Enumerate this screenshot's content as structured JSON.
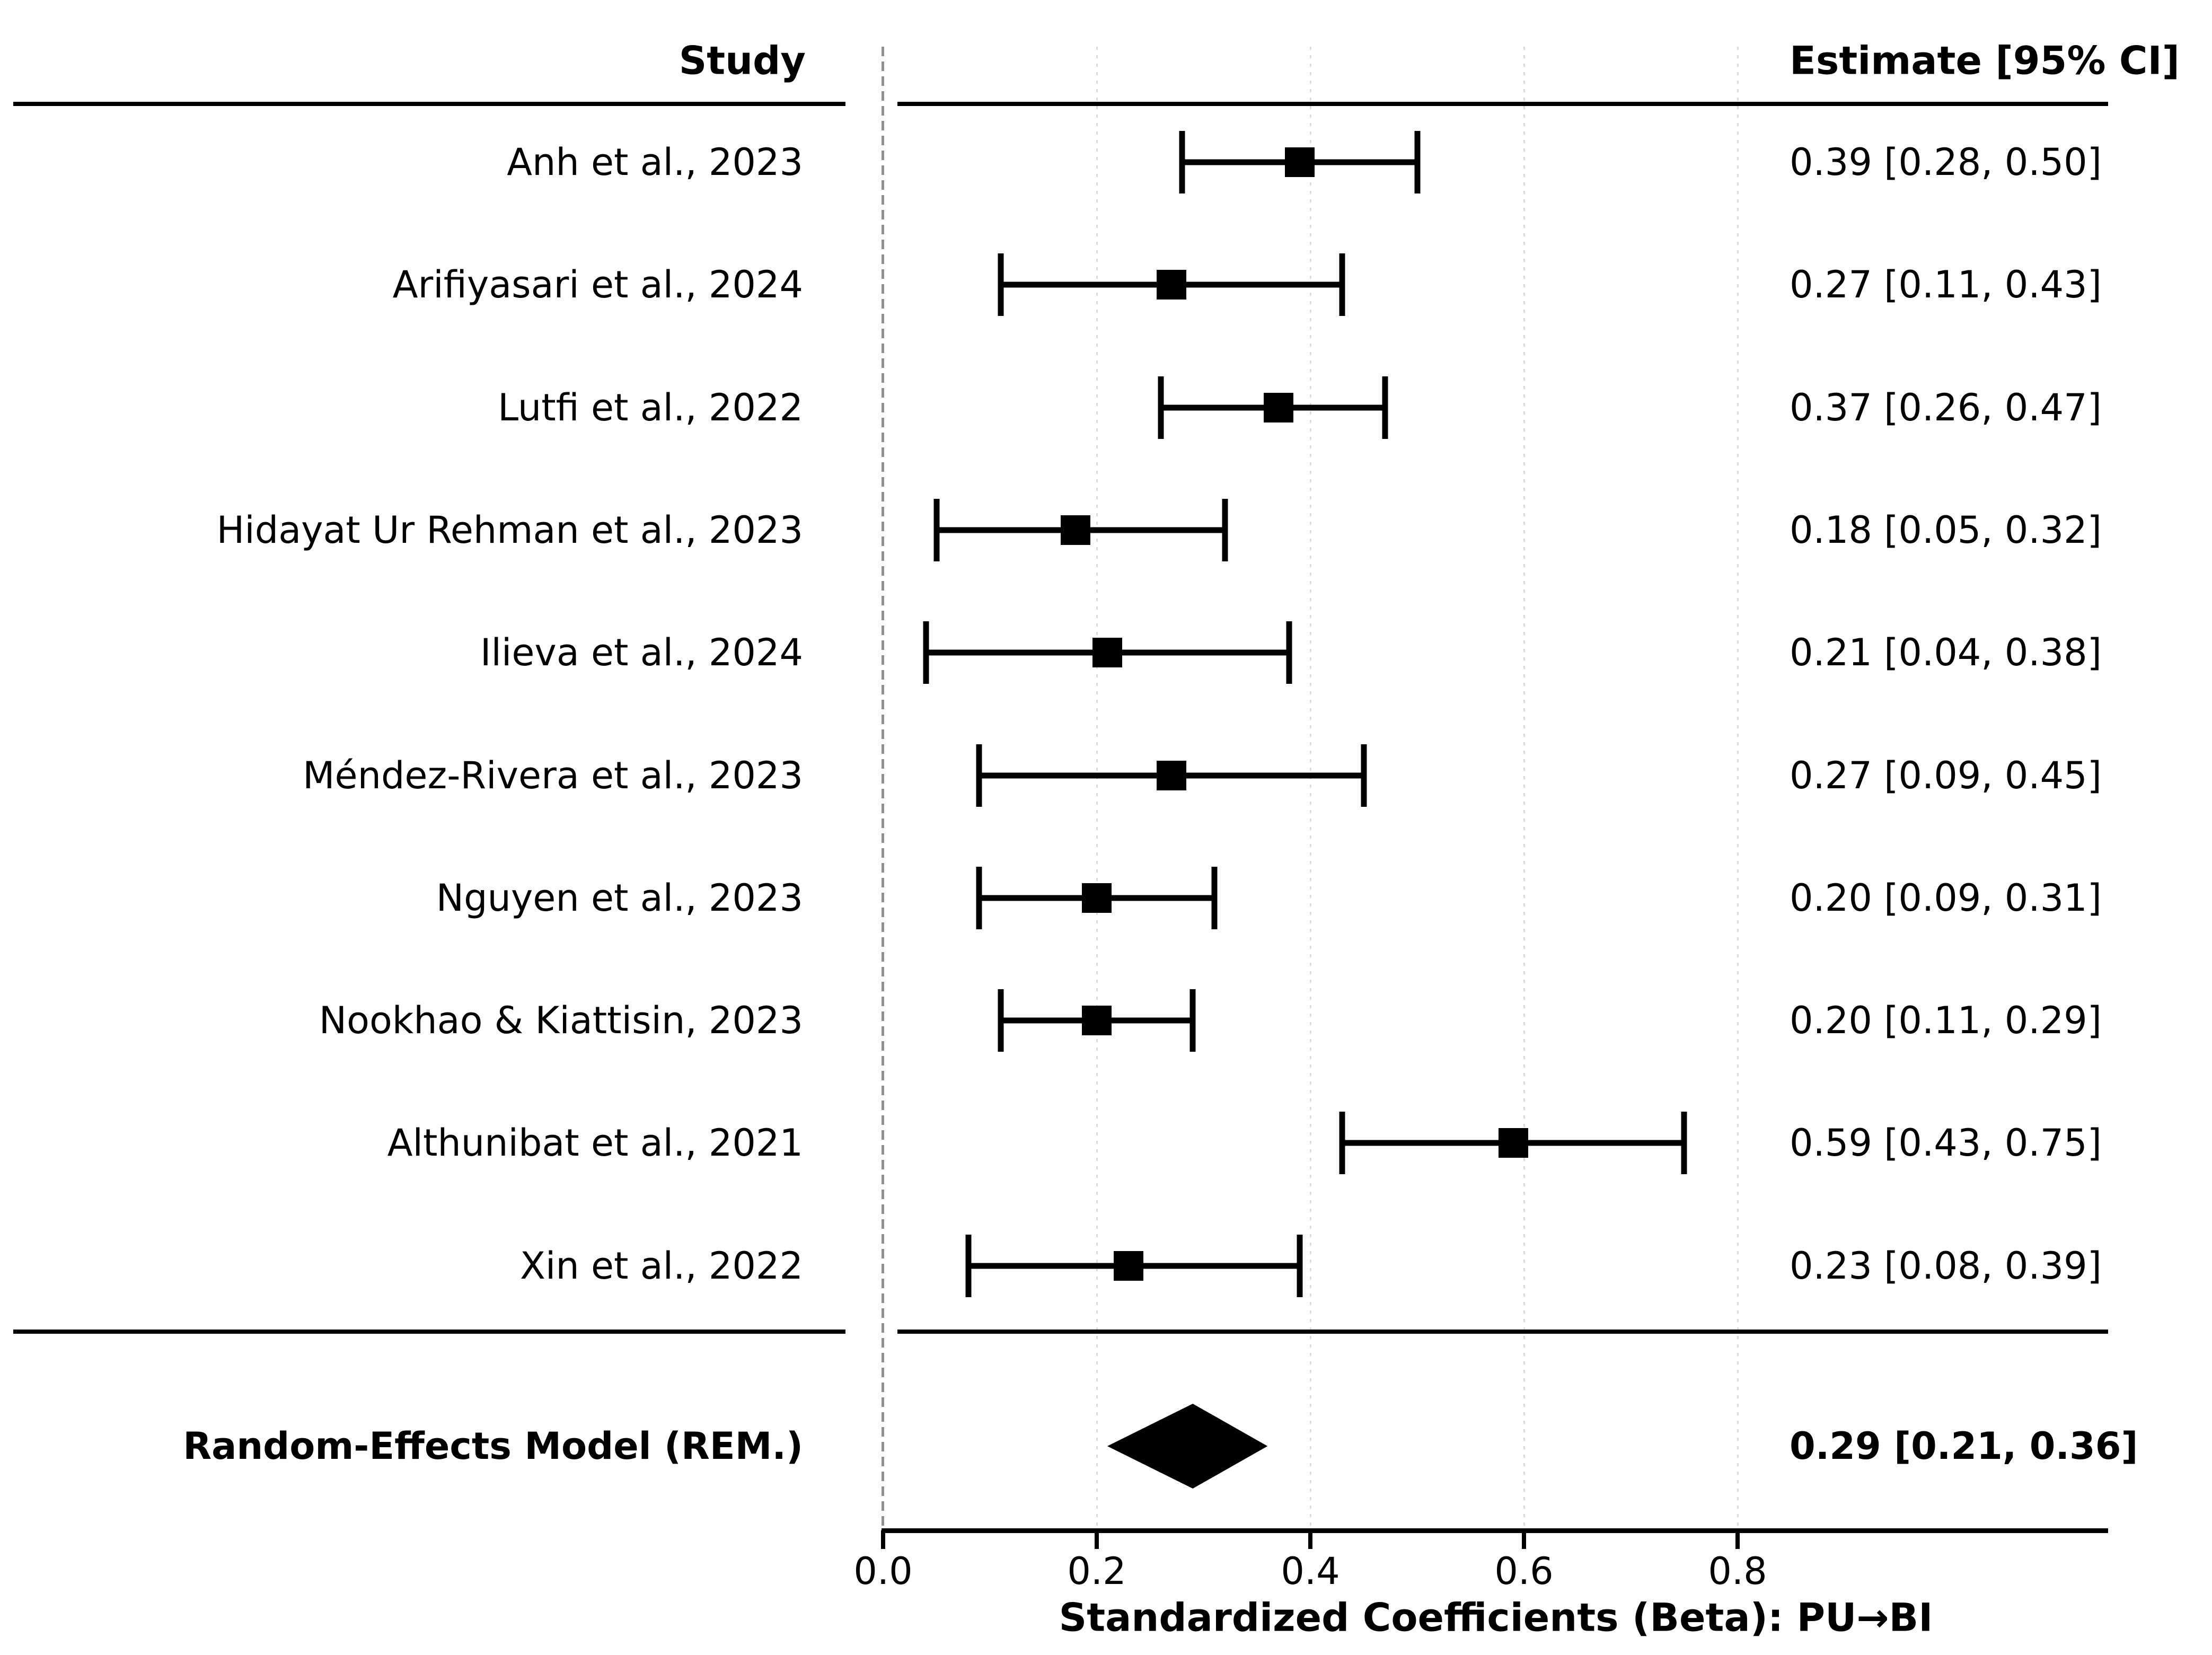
{
  "chart_data": {
    "type": "forest",
    "columns": {
      "study": "Study",
      "estimate": "Estimate [95% CI]"
    },
    "studies": [
      {
        "label": "Anh et al., 2023",
        "estimate": 0.39,
        "ci_low": 0.28,
        "ci_high": 0.5,
        "estimate_label": "0.39 [0.28, 0.50]"
      },
      {
        "label": "Arifiyasari et al., 2024",
        "estimate": 0.27,
        "ci_low": 0.11,
        "ci_high": 0.43,
        "estimate_label": "0.27 [0.11, 0.43]"
      },
      {
        "label": "Lutfi et al., 2022",
        "estimate": 0.37,
        "ci_low": 0.26,
        "ci_high": 0.47,
        "estimate_label": "0.37 [0.26, 0.47]"
      },
      {
        "label": "Hidayat Ur Rehman et al., 2023",
        "estimate": 0.18,
        "ci_low": 0.05,
        "ci_high": 0.32,
        "estimate_label": "0.18 [0.05, 0.32]"
      },
      {
        "label": "Ilieva et al., 2024",
        "estimate": 0.21,
        "ci_low": 0.04,
        "ci_high": 0.38,
        "estimate_label": "0.21 [0.04, 0.38]"
      },
      {
        "label": "Méndez-Rivera et al., 2023",
        "estimate": 0.27,
        "ci_low": 0.09,
        "ci_high": 0.45,
        "estimate_label": "0.27 [0.09, 0.45]"
      },
      {
        "label": "Nguyen et al., 2023",
        "estimate": 0.2,
        "ci_low": 0.09,
        "ci_high": 0.31,
        "estimate_label": "0.20 [0.09, 0.31]"
      },
      {
        "label": "Nookhao & Kiattisin, 2023",
        "estimate": 0.2,
        "ci_low": 0.11,
        "ci_high": 0.29,
        "estimate_label": "0.20 [0.11, 0.29]"
      },
      {
        "label": "Althunibat et al., 2021",
        "estimate": 0.59,
        "ci_low": 0.43,
        "ci_high": 0.75,
        "estimate_label": "0.59 [0.43, 0.75]"
      },
      {
        "label": "Xin et al., 2022",
        "estimate": 0.23,
        "ci_low": 0.08,
        "ci_high": 0.39,
        "estimate_label": "0.23 [0.08, 0.39]"
      }
    ],
    "summary": {
      "label": "Random-Effects Model (REM.)",
      "estimate": 0.29,
      "ci_low": 0.21,
      "ci_high": 0.36,
      "estimate_label": "0.29 [0.21, 0.36]"
    },
    "xlabel": "Standardized Coefficients (Beta): PU→BI",
    "x_ticks": [
      "0.0",
      "0.2",
      "0.4",
      "0.6",
      "0.8"
    ],
    "x_tick_values": [
      0.0,
      0.2,
      0.4,
      0.6,
      0.8
    ],
    "xlim": [
      0.0,
      1.147
    ],
    "zero_reference_line": 0.0,
    "grid": "faint dotted vertical gridlines at tick positions",
    "legend": "none",
    "colors": {
      "foreground": "#000000",
      "background": "#ffffff",
      "zero_line": "#8f8f8f",
      "gridline": "#dcdcdc"
    }
  }
}
